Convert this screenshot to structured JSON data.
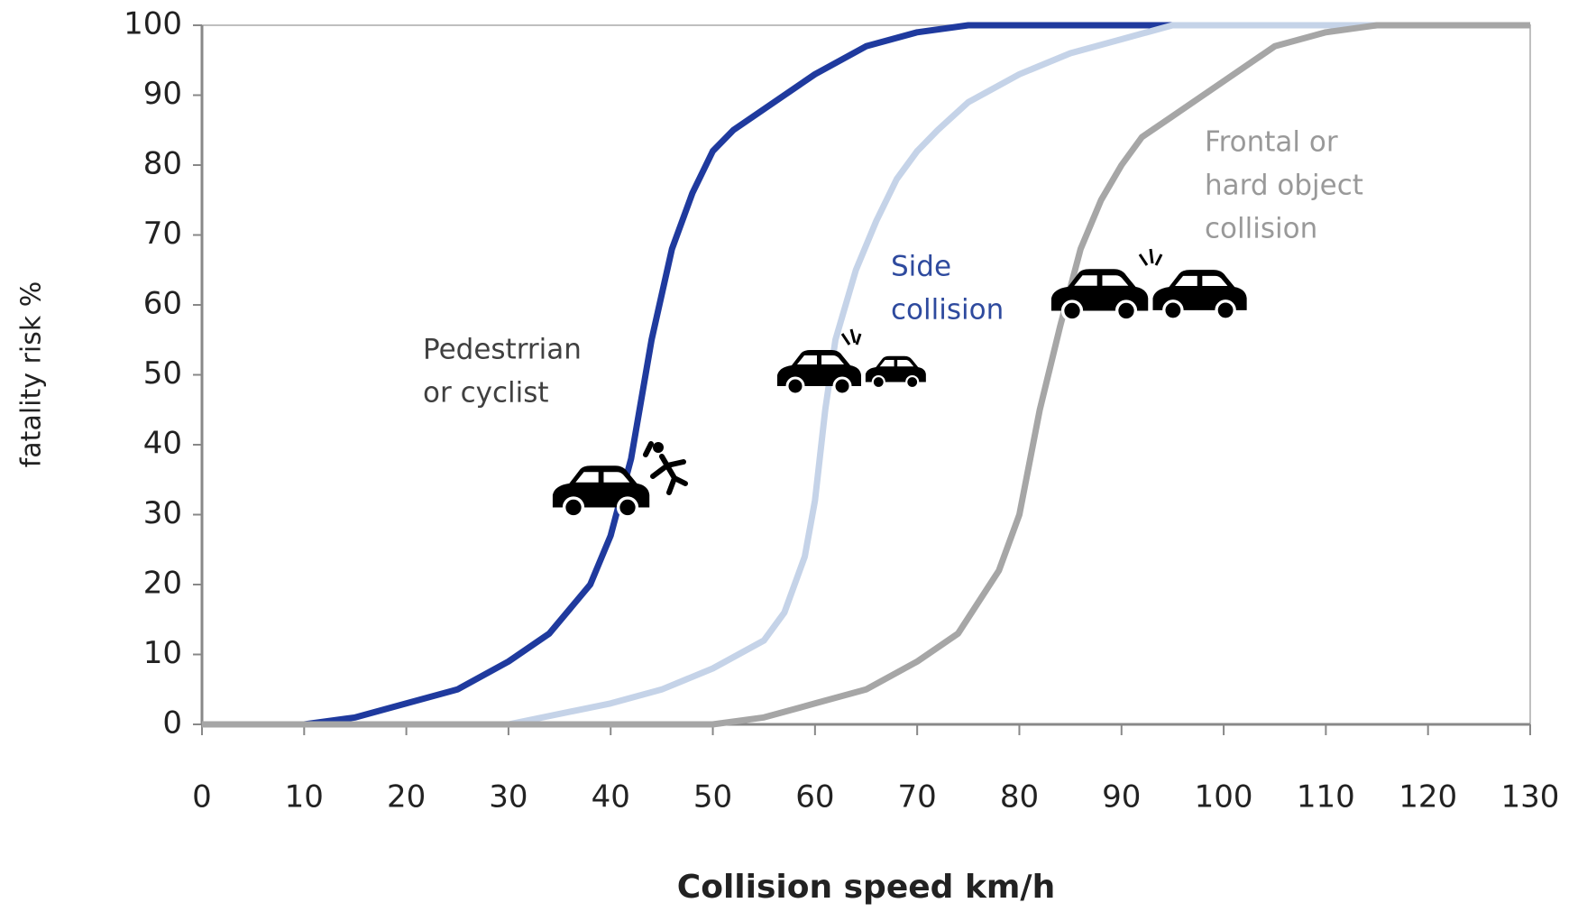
{
  "chart_data": {
    "type": "line",
    "x_label": "Collision speed km/h",
    "y_label": "fatality risk %",
    "xlim": [
      0,
      130
    ],
    "ylim": [
      0,
      100
    ],
    "xticks": [
      0,
      10,
      20,
      30,
      40,
      50,
      60,
      70,
      80,
      90,
      100,
      110,
      120,
      130
    ],
    "yticks": [
      0,
      10,
      20,
      30,
      40,
      50,
      60,
      70,
      80,
      90,
      100
    ],
    "grid": false,
    "series": [
      {
        "label": [
          "Pedestrrian",
          "or cyclist"
        ],
        "color": "#1f3a9e",
        "label_color": "#404040",
        "x": [
          0,
          10,
          15,
          20,
          25,
          30,
          34,
          38,
          40,
          42,
          44,
          46,
          48,
          50,
          52,
          55,
          60,
          65,
          70,
          75,
          80,
          130
        ],
        "values": [
          0,
          0,
          1,
          3,
          5,
          9,
          13,
          20,
          27,
          38,
          55,
          68,
          76,
          82,
          85,
          88,
          93,
          97,
          99,
          100,
          100,
          100
        ]
      },
      {
        "label": [
          "Side",
          "collision"
        ],
        "color": "#c5d3e8",
        "label_color": "#2e4a9e",
        "x": [
          0,
          30,
          40,
          45,
          50,
          55,
          57,
          59,
          60,
          61,
          62,
          64,
          66,
          68,
          70,
          72,
          75,
          80,
          85,
          90,
          95,
          130
        ],
        "values": [
          0,
          0,
          3,
          5,
          8,
          12,
          16,
          24,
          32,
          45,
          55,
          65,
          72,
          78,
          82,
          85,
          89,
          93,
          96,
          98,
          100,
          100
        ]
      },
      {
        "label": [
          "Frontal or",
          "hard object",
          "collision"
        ],
        "color": "#a6a6a6",
        "label_color": "#999999",
        "x": [
          0,
          50,
          55,
          60,
          65,
          70,
          74,
          78,
          80,
          82,
          84,
          86,
          88,
          90,
          92,
          95,
          100,
          105,
          110,
          115,
          130
        ],
        "values": [
          0,
          0,
          1,
          3,
          5,
          9,
          13,
          22,
          30,
          45,
          57,
          68,
          75,
          80,
          84,
          87,
          92,
          97,
          99,
          100,
          100
        ]
      }
    ]
  }
}
